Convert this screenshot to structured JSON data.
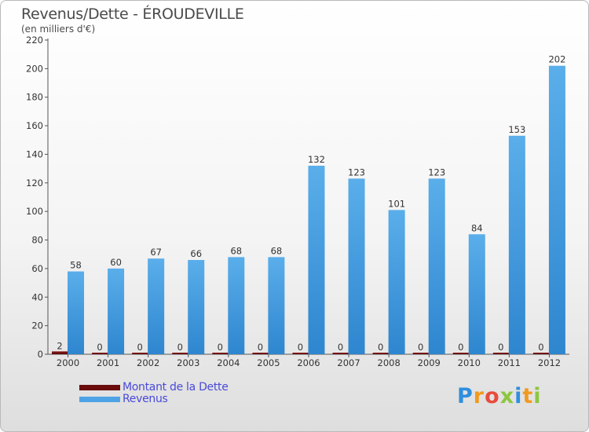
{
  "header": {
    "title": "Revenus/Dette - ÉROUDEVILLE",
    "subtitle": "(en milliers d'€)"
  },
  "legend": {
    "items": [
      {
        "label": "Montant de la Dette",
        "color": "#6b0c0c"
      },
      {
        "label": "Revenus",
        "color": "#4ea3e6"
      }
    ]
  },
  "logo": {
    "letters": [
      "P",
      "r",
      "o",
      "x",
      "i",
      "t",
      "i"
    ],
    "colors": [
      "#2f8ede",
      "#f29a1f",
      "#e74c3c",
      "#8dc63f",
      "#2f8ede",
      "#f29a1f",
      "#8dc63f"
    ]
  },
  "chart_data": {
    "type": "bar",
    "title": "Revenus/Dette - ÉROUDEVILLE",
    "ylabel": "(en milliers d'€)",
    "xlabel": "",
    "categories": [
      "2000",
      "2001",
      "2002",
      "2003",
      "2004",
      "2005",
      "2006",
      "2007",
      "2008",
      "2009",
      "2010",
      "2011",
      "2012"
    ],
    "series": [
      {
        "name": "Montant de la Dette",
        "color": "#6b0c0c",
        "values": [
          2,
          0,
          0,
          0,
          0,
          0,
          0,
          0,
          0,
          0,
          0,
          0,
          0
        ]
      },
      {
        "name": "Revenus",
        "color": "#4ea3e6",
        "values": [
          58,
          60,
          67,
          66,
          68,
          68,
          132,
          123,
          101,
          123,
          84,
          153,
          202
        ]
      }
    ],
    "ylim": [
      0,
      220
    ],
    "yticks": [
      0,
      20,
      40,
      60,
      80,
      100,
      120,
      140,
      160,
      180,
      200,
      220
    ],
    "grid": false,
    "legend": "bottom-left"
  }
}
